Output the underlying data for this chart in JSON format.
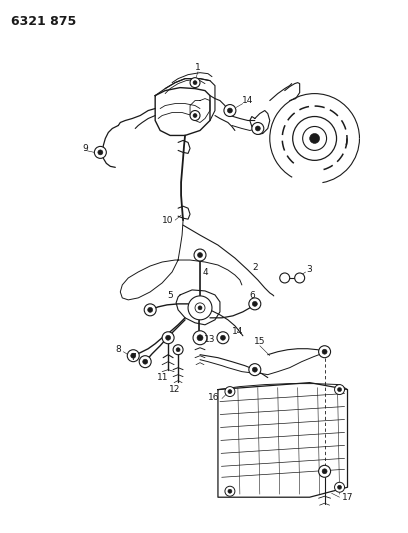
{
  "title_code": "6321 875",
  "bg_color": "#ffffff",
  "line_color": "#1a1a1a",
  "fig_width": 4.08,
  "fig_height": 5.33,
  "dpi": 100
}
